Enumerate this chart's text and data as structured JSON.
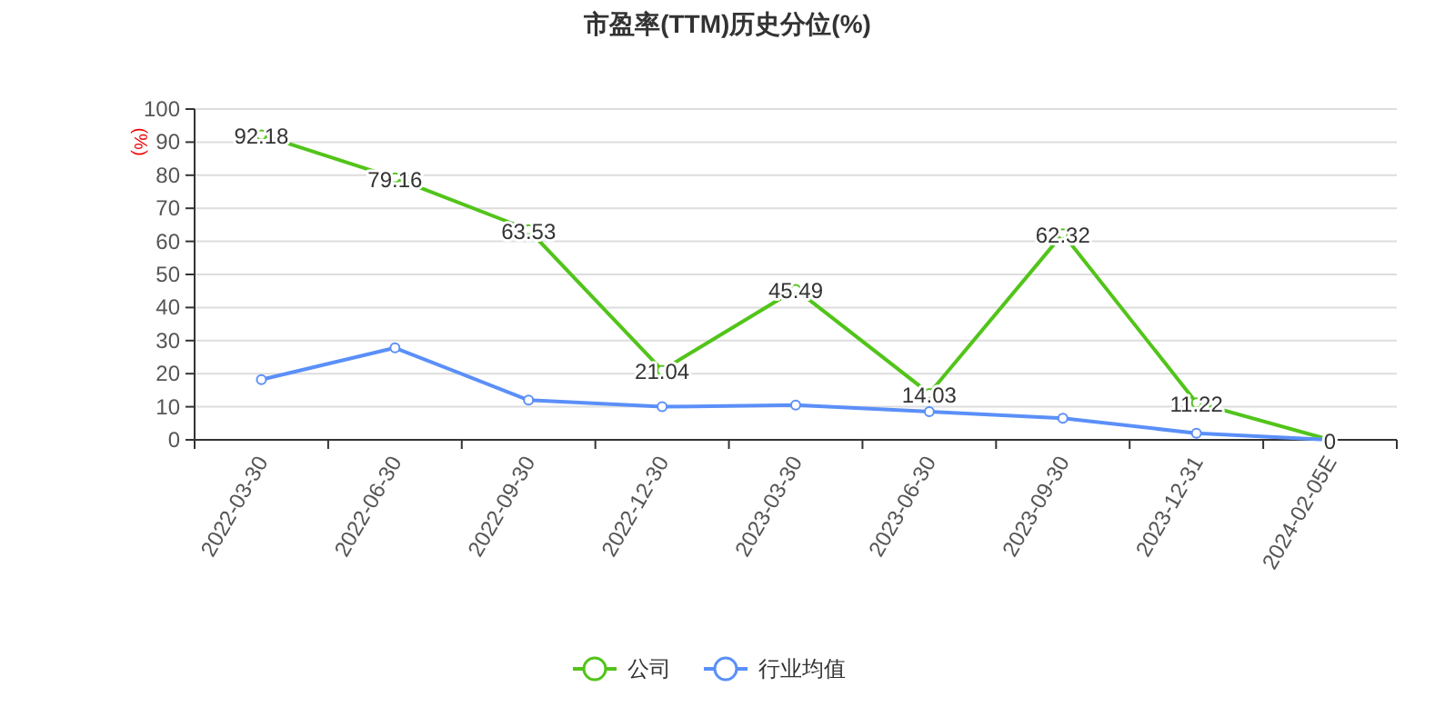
{
  "chart_data": {
    "type": "line",
    "title": "市盈率(TTM)历史分位(%)",
    "ylabel": "(%)",
    "categories": [
      "2022-03-30",
      "2022-06-30",
      "2022-09-30",
      "2022-12-30",
      "2023-03-30",
      "2023-06-30",
      "2023-09-30",
      "2023-12-31",
      "2024-02-05E"
    ],
    "series": [
      {
        "name": "公司",
        "color": "#52c41a",
        "values": [
          92.18,
          79.16,
          63.53,
          21.04,
          45.49,
          14.03,
          62.32,
          11.22,
          0
        ],
        "value_labels": [
          "92.18",
          "79.16",
          "63.53",
          "21.04",
          "45.49",
          "14.03",
          "62.32",
          "11.22",
          "0"
        ]
      },
      {
        "name": "行业均值",
        "color": "#5b8ff9",
        "values": [
          18.2,
          27.8,
          12,
          10,
          10.5,
          8.5,
          6.5,
          2,
          0
        ]
      }
    ],
    "ylim": [
      0,
      100
    ],
    "yticks": [
      0,
      10,
      20,
      30,
      40,
      50,
      60,
      70,
      80,
      90,
      100
    ],
    "grid": "y",
    "legend": "bottom",
    "marker": "circle",
    "line_style": "solid"
  }
}
